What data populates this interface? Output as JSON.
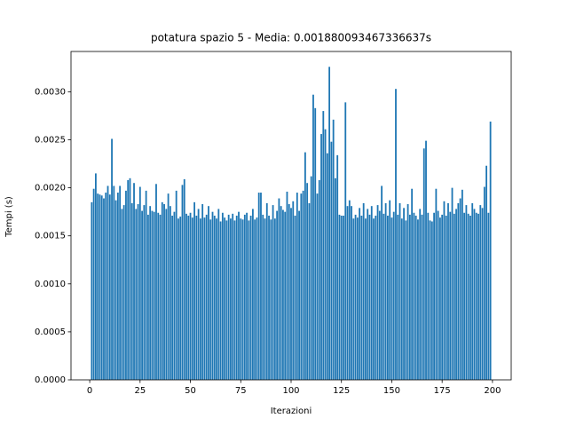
{
  "chart_data": {
    "type": "bar",
    "title": "potatura spazio 5 - Media: 0.001880093467336637s",
    "xlabel": "Iterazioni",
    "ylabel": "Tempi (s)",
    "color": "#1f77b4",
    "xlim": [
      -9.3,
      209.3
    ],
    "ylim": [
      0,
      0.00342
    ],
    "xticks": [
      0,
      25,
      50,
      75,
      100,
      125,
      150,
      175,
      200
    ],
    "yticks": [
      {
        "value": 0,
        "label": "0.0000"
      },
      {
        "value": 0.0005,
        "label": "0.0005"
      },
      {
        "value": 0.001,
        "label": "0.0010"
      },
      {
        "value": 0.0015,
        "label": "0.0015"
      },
      {
        "value": 0.002,
        "label": "0.0020"
      },
      {
        "value": 0.0025,
        "label": "0.0025"
      },
      {
        "value": 0.003,
        "label": "0.0030"
      }
    ],
    "x": [
      1,
      2,
      3,
      4,
      5,
      6,
      7,
      8,
      9,
      10,
      11,
      12,
      13,
      14,
      15,
      16,
      17,
      18,
      19,
      20,
      21,
      22,
      23,
      24,
      25,
      26,
      27,
      28,
      29,
      30,
      31,
      32,
      33,
      34,
      35,
      36,
      37,
      38,
      39,
      40,
      41,
      42,
      43,
      44,
      45,
      46,
      47,
      48,
      49,
      50,
      51,
      52,
      53,
      54,
      55,
      56,
      57,
      58,
      59,
      60,
      61,
      62,
      63,
      64,
      65,
      66,
      67,
      68,
      69,
      70,
      71,
      72,
      73,
      74,
      75,
      76,
      77,
      78,
      79,
      80,
      81,
      82,
      83,
      84,
      85,
      86,
      87,
      88,
      89,
      90,
      91,
      92,
      93,
      94,
      95,
      96,
      97,
      98,
      99,
      100,
      101,
      102,
      103,
      104,
      105,
      106,
      107,
      108,
      109,
      110,
      111,
      112,
      113,
      114,
      115,
      116,
      117,
      118,
      119,
      120,
      121,
      122,
      123,
      124,
      125,
      126,
      127,
      128,
      129,
      130,
      131,
      132,
      133,
      134,
      135,
      136,
      137,
      138,
      139,
      140,
      141,
      142,
      143,
      144,
      145,
      146,
      147,
      148,
      149,
      150,
      151,
      152,
      153,
      154,
      155,
      156,
      157,
      158,
      159,
      160,
      161,
      162,
      163,
      164,
      165,
      166,
      167,
      168,
      169,
      170,
      171,
      172,
      173,
      174,
      175,
      176,
      177,
      178,
      179,
      180,
      181,
      182,
      183,
      184,
      185,
      186,
      187,
      188,
      189,
      190,
      191,
      192,
      193,
      194,
      195,
      196,
      197,
      198,
      199
    ],
    "values": [
      0.00185,
      0.00199,
      0.00215,
      0.00194,
      0.00193,
      0.00192,
      0.00189,
      0.00195,
      0.00202,
      0.00193,
      0.00251,
      0.00202,
      0.00187,
      0.00195,
      0.00202,
      0.00178,
      0.00182,
      0.00197,
      0.00208,
      0.0021,
      0.00184,
      0.00205,
      0.00178,
      0.00183,
      0.00201,
      0.00176,
      0.00182,
      0.00197,
      0.00172,
      0.00181,
      0.00176,
      0.00175,
      0.00204,
      0.00174,
      0.00172,
      0.00185,
      0.00183,
      0.00178,
      0.00194,
      0.00181,
      0.00171,
      0.00175,
      0.00197,
      0.00168,
      0.0017,
      0.00203,
      0.00209,
      0.00173,
      0.00171,
      0.00174,
      0.00169,
      0.00185,
      0.00171,
      0.00178,
      0.00168,
      0.00183,
      0.00169,
      0.00172,
      0.00181,
      0.00167,
      0.00175,
      0.00171,
      0.00168,
      0.00178,
      0.00165,
      0.00174,
      0.00169,
      0.00166,
      0.00172,
      0.00168,
      0.00173,
      0.00166,
      0.00171,
      0.00175,
      0.00168,
      0.00167,
      0.00172,
      0.00174,
      0.00166,
      0.00171,
      0.00178,
      0.00167,
      0.00169,
      0.00195,
      0.00195,
      0.00172,
      0.00168,
      0.00184,
      0.00171,
      0.00167,
      0.00182,
      0.00168,
      0.00176,
      0.00189,
      0.00181,
      0.00177,
      0.00175,
      0.00196,
      0.00183,
      0.00179,
      0.00186,
      0.00171,
      0.00195,
      0.00176,
      0.00194,
      0.00197,
      0.00237,
      0.00205,
      0.00184,
      0.00212,
      0.00297,
      0.00283,
      0.00194,
      0.00208,
      0.00256,
      0.0028,
      0.00261,
      0.00236,
      0.00326,
      0.00248,
      0.00271,
      0.0021,
      0.00234,
      0.00172,
      0.00171,
      0.00171,
      0.00289,
      0.00181,
      0.00187,
      0.00181,
      0.00168,
      0.00172,
      0.00169,
      0.00179,
      0.00171,
      0.00184,
      0.00168,
      0.00178,
      0.00172,
      0.00181,
      0.00168,
      0.00171,
      0.00182,
      0.00176,
      0.00202,
      0.00173,
      0.00184,
      0.00171,
      0.00187,
      0.00169,
      0.00175,
      0.00303,
      0.00172,
      0.00184,
      0.00168,
      0.00179,
      0.00166,
      0.00183,
      0.00172,
      0.00199,
      0.00174,
      0.00171,
      0.00167,
      0.00178,
      0.00172,
      0.00241,
      0.00249,
      0.00174,
      0.00166,
      0.00165,
      0.00174,
      0.00199,
      0.00176,
      0.00169,
      0.00172,
      0.00186,
      0.00171,
      0.00184,
      0.00175,
      0.002,
      0.00173,
      0.00178,
      0.00184,
      0.00189,
      0.00198,
      0.00174,
      0.00182,
      0.00173,
      0.00171,
      0.00184,
      0.00178,
      0.00174,
      0.00173,
      0.00182,
      0.00179,
      0.00201,
      0.00223,
      0.00174,
      0.00269
    ]
  }
}
